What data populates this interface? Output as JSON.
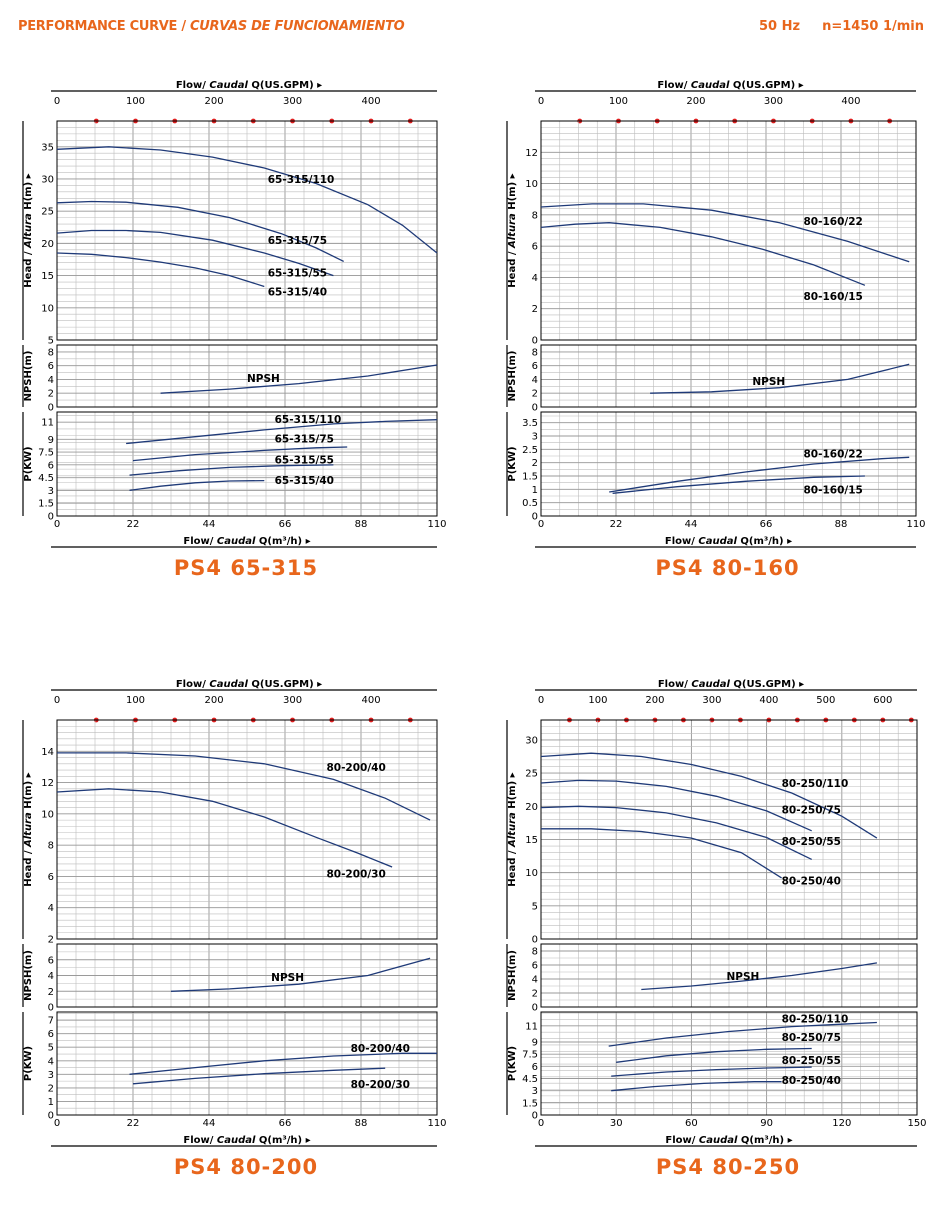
{
  "header": {
    "title_a": "PERFORMANCE CURVE",
    "title_sep": " / ",
    "title_b": "CURVAS DE FUNCIONAMIENTO",
    "freq": "50 Hz",
    "speed": "n=1450 1/min"
  },
  "axis_text": {
    "top_flow_a": "Flow/ ",
    "top_flow_b": "Caudal",
    "top_flow_c": " Q(US.GPM)",
    "bottom_flow_a": "Flow/ ",
    "bottom_flow_b": "Caudal",
    "bottom_flow_c": " Q(m³/h)",
    "head_a": "Head / ",
    "head_b": "Altura",
    "head_c": " H(m)",
    "npsh": "NPSH(m)",
    "power": "P(KW)",
    "npsh_label": "NPSH",
    "arrow": "▸"
  },
  "colors": {
    "curve": "#1f3a78",
    "grid": "#bdbdbd",
    "accent": "#e8661c",
    "tick_dot": "#e01e1e"
  },
  "chart_data": [
    {
      "type": "line",
      "title": "PS4 65-315",
      "x_m3h": {
        "min": 0,
        "max": 110,
        "ticks": [
          0,
          22,
          44,
          66,
          88,
          110
        ]
      },
      "x_gpm": {
        "ticks": [
          0,
          100,
          200,
          300,
          400
        ],
        "max": 484
      },
      "head": {
        "ylim": [
          5,
          39
        ],
        "ticks": [
          5,
          10,
          15,
          20,
          25,
          30,
          35
        ],
        "series": [
          {
            "name": "65-315/110",
            "x": [
              0,
              15,
              30,
              45,
              60,
              75,
              90,
              100,
              110
            ],
            "y": [
              34.6,
              35,
              34.5,
              33.4,
              31.7,
              29.3,
              26,
              22.8,
              18.5
            ]
          },
          {
            "name": "65-315/75",
            "x": [
              0,
              10,
              20,
              35,
              50,
              65,
              75,
              83
            ],
            "y": [
              26.3,
              26.5,
              26.4,
              25.6,
              24,
              21.5,
              19.3,
              17.2
            ]
          },
          {
            "name": "65-315/55",
            "x": [
              0,
              10,
              20,
              30,
              45,
              60,
              70,
              80
            ],
            "y": [
              21.6,
              22,
              22,
              21.7,
              20.5,
              18.5,
              16.9,
              15
            ]
          },
          {
            "name": "65-315/40",
            "x": [
              0,
              10,
              20,
              30,
              40,
              50,
              60
            ],
            "y": [
              18.5,
              18.3,
              17.8,
              17.1,
              16.2,
              15,
              13.3
            ]
          }
        ],
        "labels": [
          {
            "text": "65-315/110",
            "x": 61,
            "y": 30
          },
          {
            "text": "65-315/75",
            "x": 61,
            "y": 20.5
          },
          {
            "text": "65-315/55",
            "x": 61,
            "y": 15.5
          },
          {
            "text": "65-315/40",
            "x": 61,
            "y": 12.5
          }
        ]
      },
      "npsh": {
        "ylim": [
          0,
          9
        ],
        "ticks": [
          0,
          2,
          4,
          6,
          8
        ],
        "series": [
          {
            "name": "NPSH",
            "x": [
              30,
              50,
              70,
              90,
              110
            ],
            "y": [
              2,
              2.6,
              3.4,
              4.5,
              6.1
            ]
          }
        ],
        "label": {
          "text": "NPSH",
          "x": 55,
          "y": 4.2
        }
      },
      "power": {
        "ylim": [
          0,
          12.2
        ],
        "ticks": [
          0,
          1.5,
          3,
          4.5,
          6,
          7.5,
          9,
          11
        ],
        "series": [
          {
            "name": "65-315/110",
            "x": [
              20,
              40,
              60,
              80,
              95,
              110
            ],
            "y": [
              8.5,
              9.3,
              10.1,
              10.8,
              11.1,
              11.3
            ]
          },
          {
            "name": "65-315/75",
            "x": [
              22,
              40,
              60,
              75,
              84
            ],
            "y": [
              6.5,
              7.2,
              7.7,
              8,
              8.1
            ]
          },
          {
            "name": "65-315/55",
            "x": [
              21,
              35,
              50,
              65,
              80
            ],
            "y": [
              4.8,
              5.3,
              5.7,
              5.9,
              6
            ]
          },
          {
            "name": "65-315/40",
            "x": [
              21,
              30,
              40,
              50,
              60
            ],
            "y": [
              3,
              3.5,
              3.9,
              4.1,
              4.15
            ]
          }
        ],
        "labels": [
          {
            "text": "65-315/110",
            "x": 63,
            "y": 11.4
          },
          {
            "text": "65-315/75",
            "x": 63,
            "y": 9.1
          },
          {
            "text": "65-315/55",
            "x": 63,
            "y": 6.6
          },
          {
            "text": "65-315/40",
            "x": 63,
            "y": 4.2
          }
        ]
      }
    },
    {
      "type": "line",
      "title": "PS4 80-160",
      "x_m3h": {
        "min": 0,
        "max": 110,
        "ticks": [
          0,
          22,
          44,
          66,
          88,
          110
        ]
      },
      "x_gpm": {
        "ticks": [
          0,
          100,
          200,
          300,
          400
        ],
        "max": 484
      },
      "head": {
        "ylim": [
          0,
          14
        ],
        "ticks": [
          0,
          2,
          4,
          6,
          8,
          10,
          12
        ],
        "series": [
          {
            "name": "80-160/22",
            "x": [
              0,
              15,
              30,
              50,
              70,
              90,
              108
            ],
            "y": [
              8.5,
              8.7,
              8.7,
              8.3,
              7.5,
              6.3,
              5
            ]
          },
          {
            "name": "80-160/15",
            "x": [
              0,
              10,
              20,
              35,
              50,
              65,
              80,
              95
            ],
            "y": [
              7.2,
              7.4,
              7.5,
              7.2,
              6.6,
              5.8,
              4.8,
              3.5
            ]
          }
        ],
        "labels": [
          {
            "text": "80-160/22",
            "x": 77,
            "y": 7.6
          },
          {
            "text": "80-160/15",
            "x": 77,
            "y": 2.8
          }
        ]
      },
      "npsh": {
        "ylim": [
          0,
          9
        ],
        "ticks": [
          0,
          2,
          4,
          6,
          8
        ],
        "series": [
          {
            "name": "NPSH",
            "x": [
              32,
              50,
              70,
              90,
              108
            ],
            "y": [
              2,
              2.2,
              2.8,
              4,
              6.2
            ]
          }
        ],
        "label": {
          "text": "NPSH",
          "x": 62,
          "y": 3.8
        }
      },
      "power": {
        "ylim": [
          0,
          3.9
        ],
        "ticks": [
          0,
          0.5,
          1,
          1.5,
          2,
          2.5,
          3,
          3.5
        ],
        "series": [
          {
            "name": "80-160/22",
            "x": [
              20,
              40,
              60,
              80,
              100,
              108
            ],
            "y": [
              0.9,
              1.3,
              1.65,
              1.95,
              2.15,
              2.2
            ]
          },
          {
            "name": "80-160/15",
            "x": [
              21,
              40,
              60,
              80,
              95
            ],
            "y": [
              0.85,
              1.1,
              1.3,
              1.45,
              1.5
            ]
          }
        ],
        "labels": [
          {
            "text": "80-160/22",
            "x": 77,
            "y": 2.35
          },
          {
            "text": "80-160/15",
            "x": 77,
            "y": 1.0
          }
        ]
      }
    },
    {
      "type": "line",
      "title": "PS4 80-200",
      "x_m3h": {
        "min": 0,
        "max": 110,
        "ticks": [
          0,
          22,
          44,
          66,
          88,
          110
        ]
      },
      "x_gpm": {
        "ticks": [
          0,
          100,
          200,
          300,
          400
        ],
        "max": 484
      },
      "head": {
        "ylim": [
          2,
          16
        ],
        "ticks": [
          2,
          4,
          6,
          8,
          10,
          12,
          14
        ],
        "series": [
          {
            "name": "80-200/40",
            "x": [
              0,
              20,
              40,
              60,
              80,
              95,
              108
            ],
            "y": [
              13.9,
              13.9,
              13.7,
              13.2,
              12.2,
              11,
              9.6
            ]
          },
          {
            "name": "80-200/30",
            "x": [
              0,
              15,
              30,
              45,
              60,
              75,
              87,
              97
            ],
            "y": [
              11.4,
              11.6,
              11.4,
              10.8,
              9.8,
              8.5,
              7.5,
              6.6
            ]
          }
        ],
        "labels": [
          {
            "text": "80-200/40",
            "x": 78,
            "y": 13
          },
          {
            "text": "80-200/30",
            "x": 78,
            "y": 6.2
          }
        ]
      },
      "npsh": {
        "ylim": [
          0,
          8
        ],
        "ticks": [
          0,
          2,
          4,
          6
        ],
        "series": [
          {
            "name": "NPSH",
            "x": [
              33,
              50,
              70,
              90,
              108
            ],
            "y": [
              2,
              2.3,
              2.9,
              4,
              6.2
            ]
          }
        ],
        "label": {
          "text": "NPSH",
          "x": 62,
          "y": 3.8
        }
      },
      "power": {
        "ylim": [
          0,
          7.6
        ],
        "ticks": [
          0,
          1,
          2,
          3,
          4,
          5,
          6,
          7
        ],
        "series": [
          {
            "name": "80-200/40",
            "x": [
              21,
              40,
              60,
              80,
              100,
              110
            ],
            "y": [
              3,
              3.5,
              4,
              4.35,
              4.55,
              4.55
            ]
          },
          {
            "name": "80-200/30",
            "x": [
              22,
              40,
              60,
              80,
              95
            ],
            "y": [
              2.3,
              2.7,
              3.05,
              3.3,
              3.45
            ]
          }
        ],
        "labels": [
          {
            "text": "80-200/40",
            "x": 85,
            "y": 4.95
          },
          {
            "text": "80-200/30",
            "x": 85,
            "y": 2.3
          }
        ]
      }
    },
    {
      "type": "line",
      "title": "PS4 80-250",
      "x_m3h": {
        "min": 0,
        "max": 150,
        "ticks": [
          0,
          30,
          60,
          90,
          120,
          150
        ]
      },
      "x_gpm": {
        "ticks": [
          0,
          100,
          200,
          300,
          400,
          500,
          600
        ],
        "max": 660
      },
      "head": {
        "ylim": [
          0,
          33
        ],
        "ticks": [
          0,
          5,
          10,
          15,
          20,
          25,
          30
        ],
        "series": [
          {
            "name": "80-250/110",
            "x": [
              0,
              20,
              40,
              60,
              80,
              100,
              120,
              134
            ],
            "y": [
              27.5,
              28,
              27.5,
              26.3,
              24.5,
              22,
              18.5,
              15.2
            ]
          },
          {
            "name": "80-250/75",
            "x": [
              0,
              15,
              30,
              50,
              70,
              90,
              108
            ],
            "y": [
              23.5,
              23.9,
              23.8,
              23,
              21.5,
              19.3,
              16.3
            ]
          },
          {
            "name": "80-250/55",
            "x": [
              0,
              15,
              30,
              50,
              70,
              90,
              108
            ],
            "y": [
              19.8,
              20,
              19.8,
              19,
              17.5,
              15.3,
              12
            ]
          },
          {
            "name": "80-250/40",
            "x": [
              0,
              20,
              40,
              60,
              80,
              96
            ],
            "y": [
              16.6,
              16.6,
              16.2,
              15.2,
              13,
              9.2
            ]
          }
        ],
        "labels": [
          {
            "text": "80-250/110",
            "x": 96,
            "y": 23.5
          },
          {
            "text": "80-250/75",
            "x": 96,
            "y": 19.5
          },
          {
            "text": "80-250/55",
            "x": 96,
            "y": 14.8
          },
          {
            "text": "80-250/40",
            "x": 96,
            "y": 8.8
          }
        ]
      },
      "npsh": {
        "ylim": [
          0,
          9
        ],
        "ticks": [
          0,
          2,
          4,
          6,
          8
        ],
        "series": [
          {
            "name": "NPSH",
            "x": [
              40,
              60,
              80,
              100,
              120,
              134
            ],
            "y": [
              2.5,
              3,
              3.7,
              4.5,
              5.5,
              6.3
            ]
          }
        ],
        "label": {
          "text": "NPSH",
          "x": 74,
          "y": 4.4
        }
      },
      "power": {
        "ylim": [
          0,
          12.7
        ],
        "ticks": [
          0,
          1.5,
          3,
          4.5,
          6,
          7.5,
          9,
          11
        ],
        "series": [
          {
            "name": "80-250/110",
            "x": [
              27,
              50,
              75,
              100,
              120,
              134
            ],
            "y": [
              8.5,
              9.5,
              10.3,
              10.9,
              11.2,
              11.4
            ]
          },
          {
            "name": "80-250/75",
            "x": [
              30,
              50,
              70,
              90,
              108
            ],
            "y": [
              6.5,
              7.3,
              7.8,
              8.1,
              8.2
            ]
          },
          {
            "name": "80-250/55",
            "x": [
              28,
              50,
              70,
              90,
              108
            ],
            "y": [
              4.8,
              5.3,
              5.6,
              5.8,
              5.9
            ]
          },
          {
            "name": "80-250/40",
            "x": [
              28,
              45,
              65,
              85,
              96
            ],
            "y": [
              3,
              3.5,
              3.9,
              4.1,
              4.1
            ]
          }
        ],
        "labels": [
          {
            "text": "80-250/110",
            "x": 96,
            "y": 11.9
          },
          {
            "text": "80-250/75",
            "x": 96,
            "y": 9.6
          },
          {
            "text": "80-250/55",
            "x": 96,
            "y": 6.8
          },
          {
            "text": "80-250/40",
            "x": 96,
            "y": 4.3
          }
        ]
      }
    }
  ]
}
